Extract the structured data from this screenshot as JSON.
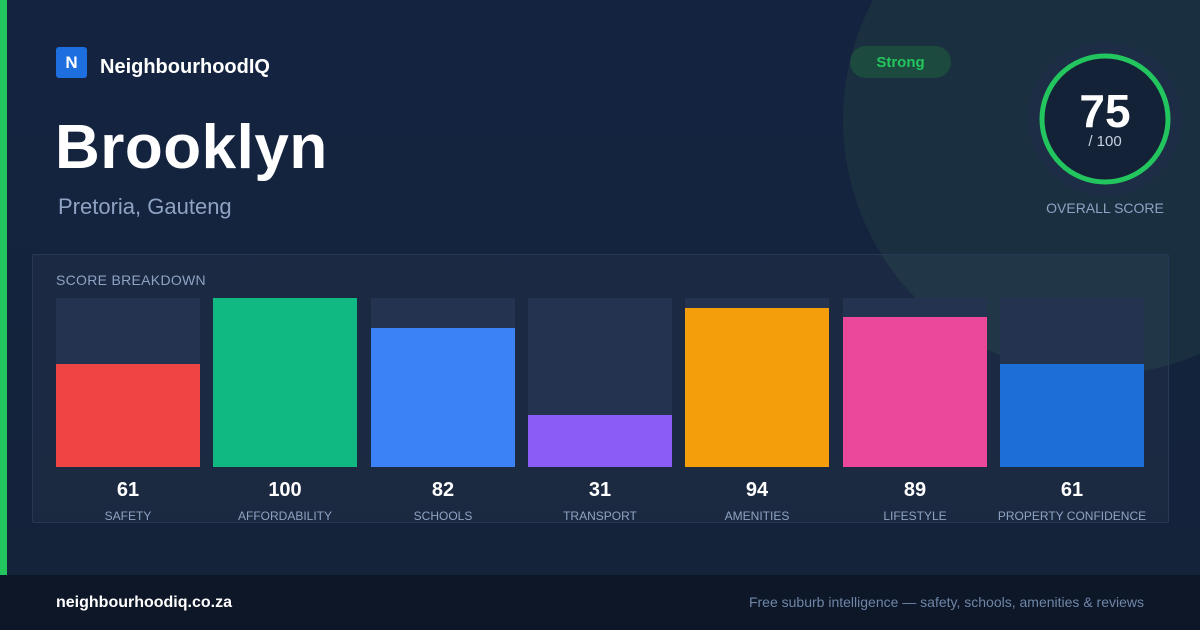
{
  "brand": {
    "logo_letter": "N",
    "name": "NeighbourhoodIQ"
  },
  "suburb": {
    "name": "Brooklyn",
    "location": "Pretoria, Gauteng"
  },
  "badge": {
    "label": "Strong",
    "color": "#22c55e"
  },
  "overall": {
    "score": "75",
    "max_label": "/ 100",
    "label": "OVERALL SCORE",
    "fraction": 0.75
  },
  "breakdown_title": "SCORE BREAKDOWN",
  "chart_data": {
    "type": "bar",
    "categories": [
      "SAFETY",
      "AFFORDABILITY",
      "SCHOOLS",
      "TRANSPORT",
      "AMENITIES",
      "LIFESTYLE",
      "PROPERTY CONFIDENCE"
    ],
    "values": [
      61,
      100,
      82,
      31,
      94,
      89,
      61
    ],
    "colors": [
      "#ef4444",
      "#10b981",
      "#3b82f6",
      "#8b5cf6",
      "#f59e0b",
      "#ec4899",
      "#1d6fd8"
    ],
    "ylim": [
      0,
      100
    ],
    "title": "SCORE BREAKDOWN"
  },
  "footer": {
    "url": "neighbourhoodiq.co.za",
    "tagline": "Free suburb intelligence — safety, schools, amenities & reviews"
  }
}
